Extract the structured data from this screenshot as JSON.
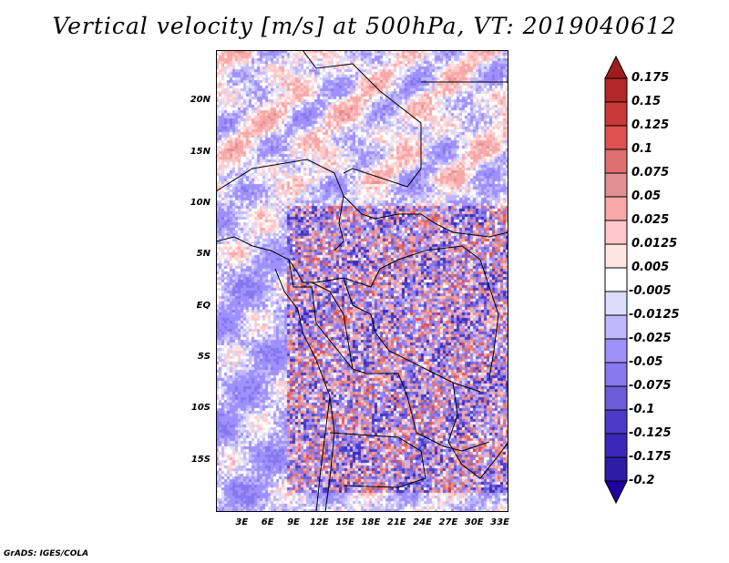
{
  "title": "Vertical velocity [m/s] at 500hPa, VT: 2019040612",
  "credit": "GrADS: IGES/COLA",
  "chart_data": {
    "type": "heatmap",
    "title": "Vertical velocity [m/s] at 500hPa, VT: 2019040612",
    "variable": "Vertical velocity",
    "units": "m/s",
    "level": "500hPa",
    "valid_time": "2019040612",
    "lon_range": [
      0,
      34
    ],
    "lat_range": [
      -20,
      25
    ],
    "x_ticks": [
      "3E",
      "6E",
      "9E",
      "12E",
      "15E",
      "18E",
      "21E",
      "24E",
      "27E",
      "30E",
      "33E"
    ],
    "x_tick_values": [
      3,
      6,
      9,
      12,
      15,
      18,
      21,
      24,
      27,
      30,
      33
    ],
    "y_ticks": [
      "20N",
      "15N",
      "10N",
      "5N",
      "EQ",
      "5S",
      "10S",
      "15S"
    ],
    "y_tick_values": [
      20,
      15,
      10,
      5,
      0,
      -5,
      -10,
      -15
    ],
    "colorbar_labels": [
      "0.175",
      "0.15",
      "0.125",
      "0.1",
      "0.075",
      "0.05",
      "0.025",
      "0.0125",
      "0.005",
      "-0.005",
      "-0.0125",
      "-0.025",
      "-0.05",
      "-0.075",
      "-0.1",
      "-0.125",
      "-0.175",
      "-0.2"
    ],
    "colorbar_colors": [
      "#a01c1c",
      "#b22828",
      "#c83a3a",
      "#e05050",
      "#e07070",
      "#e09090",
      "#f8a8a8",
      "#ffc8c8",
      "#ffe4e4",
      "#ffffff",
      "#dcdcfc",
      "#c0b8fc",
      "#a090fc",
      "#8878f0",
      "#6c5cd8",
      "#4a3cc8",
      "#3c28b8",
      "#2c1ca8",
      "#2000a0"
    ]
  }
}
